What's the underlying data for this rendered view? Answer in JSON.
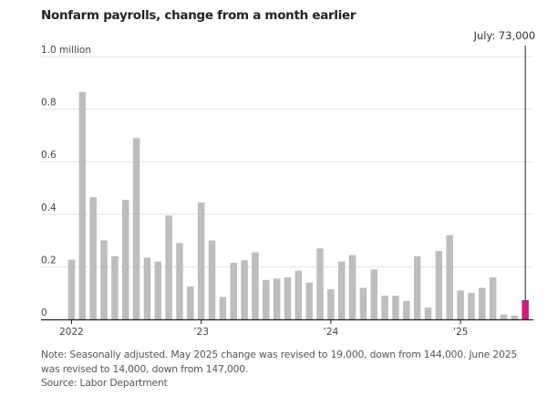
{
  "title": "Nonfarm payrolls, change from a month earlier",
  "annotation": "July: 73,000",
  "notes": {
    "line1": "Note: Seasonally adjusted. May 2025 change was revised to 19,000, down from 144,000. June 2025 was revised to 14,000, down from 147,000.",
    "source": "Source: Labor Department"
  },
  "colors": {
    "bar": "#bdbdbd",
    "highlight": "#c81e78",
    "grid": "#e3e3e3",
    "axis": "#222222"
  },
  "chart_data": {
    "type": "bar",
    "title": "Nonfarm payrolls, change from a month earlier",
    "xlabel": "",
    "ylabel": "",
    "unit": "million",
    "ylim": [
      0,
      1.0
    ],
    "yticks": [
      {
        "value": 0,
        "label": "0"
      },
      {
        "value": 0.2,
        "label": "0.2"
      },
      {
        "value": 0.4,
        "label": "0.4"
      },
      {
        "value": 0.6,
        "label": "0.6"
      },
      {
        "value": 0.8,
        "label": "0.8"
      },
      {
        "value": 1.0,
        "label": "1.0 million"
      }
    ],
    "grid": true,
    "xticks": [
      {
        "index": 0,
        "label": "2022"
      },
      {
        "index": 12,
        "label": "’23"
      },
      {
        "index": 24,
        "label": "’24"
      },
      {
        "index": 36,
        "label": "’25"
      }
    ],
    "categories": [
      "Jan 2022",
      "Feb 2022",
      "Mar 2022",
      "Apr 2022",
      "May 2022",
      "Jun 2022",
      "Jul 2022",
      "Aug 2022",
      "Sep 2022",
      "Oct 2022",
      "Nov 2022",
      "Dec 2022",
      "Jan 2023",
      "Feb 2023",
      "Mar 2023",
      "Apr 2023",
      "May 2023",
      "Jun 2023",
      "Jul 2023",
      "Aug 2023",
      "Sep 2023",
      "Oct 2023",
      "Nov 2023",
      "Dec 2023",
      "Jan 2024",
      "Feb 2024",
      "Mar 2024",
      "Apr 2024",
      "May 2024",
      "Jun 2024",
      "Jul 2024",
      "Aug 2024",
      "Sep 2024",
      "Oct 2024",
      "Nov 2024",
      "Dec 2024",
      "Jan 2025",
      "Feb 2025",
      "Mar 2025",
      "Apr 2025",
      "May 2025",
      "Jun 2025",
      "Jul 2025"
    ],
    "values": [
      0.227,
      0.865,
      0.465,
      0.3,
      0.24,
      0.455,
      0.69,
      0.235,
      0.22,
      0.395,
      0.29,
      0.125,
      0.445,
      0.3,
      0.085,
      0.215,
      0.225,
      0.255,
      0.15,
      0.155,
      0.16,
      0.185,
      0.14,
      0.27,
      0.115,
      0.22,
      0.245,
      0.12,
      0.19,
      0.09,
      0.09,
      0.07,
      0.24,
      0.045,
      0.26,
      0.32,
      0.11,
      0.1,
      0.12,
      0.16,
      0.019,
      0.014,
      0.073
    ],
    "highlight_index": 42,
    "annotations": [
      {
        "index": 42,
        "text": "July: 73,000"
      }
    ]
  }
}
